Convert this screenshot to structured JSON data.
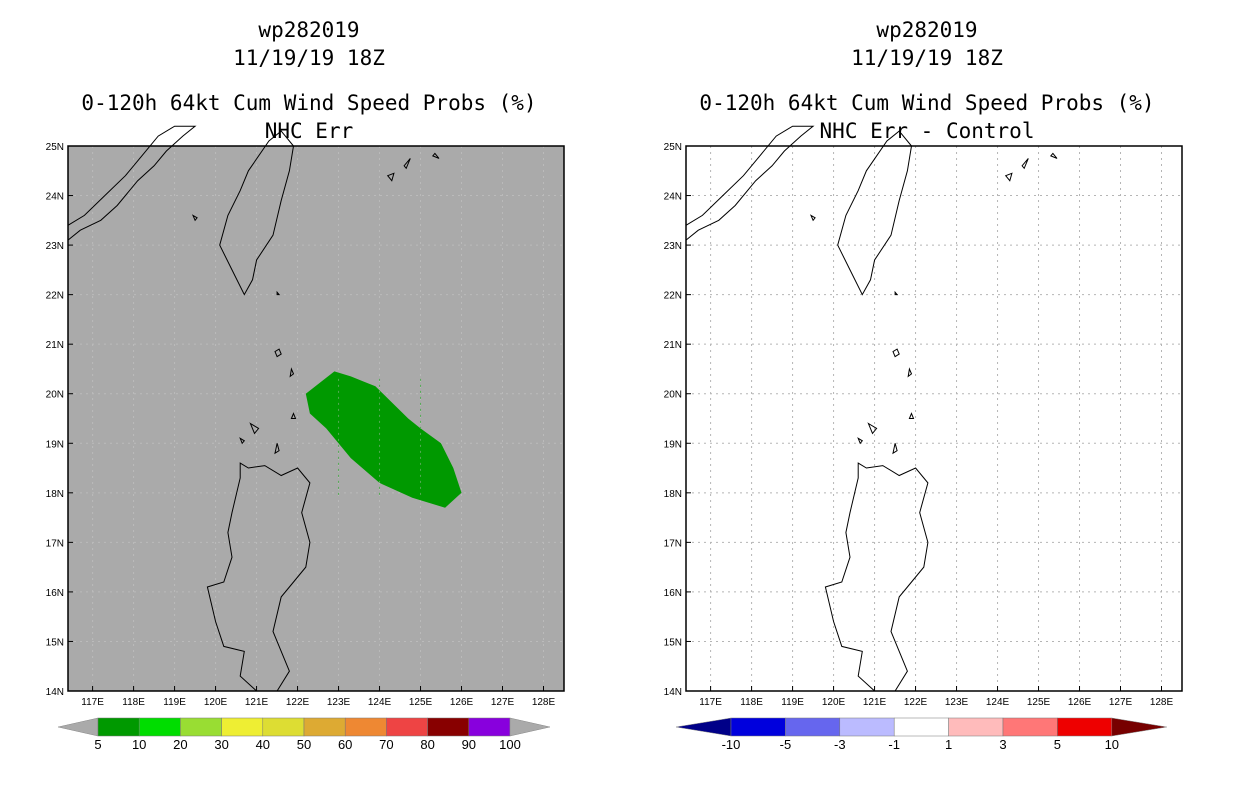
{
  "left": {
    "storm": "wp282019",
    "datetime": "11/19/19 18Z",
    "product": "0-120h 64kt Cum Wind Speed Probs (%)",
    "subtitle": "NHC Err",
    "background": "#aaaaaa",
    "colorbar": {
      "labels": [
        "5",
        "10",
        "20",
        "30",
        "40",
        "50",
        "60",
        "70",
        "80",
        "90",
        "100"
      ],
      "colors": [
        "#009900",
        "#00dd00",
        "#99dd33",
        "#eeee33",
        "#dddd33",
        "#ddaa33",
        "#ee8833",
        "#ee4444",
        "#880000",
        "#8800dd"
      ],
      "end_colors": [
        "#aaaaaa",
        "#aaaaaa"
      ]
    }
  },
  "right": {
    "storm": "wp282019",
    "datetime": "11/19/19 18Z",
    "product": "0-120h 64kt Cum Wind Speed Probs (%)",
    "subtitle": "NHC Err - Control",
    "background": "#ffffff",
    "colorbar": {
      "labels": [
        "-10",
        "-5",
        "-3",
        "-1",
        "1",
        "3",
        "5",
        "10"
      ],
      "colors": [
        "#0000dd",
        "#6666ee",
        "#bbbbff",
        "#ffffff",
        "#ffbbbb",
        "#ff7777",
        "#ee0000"
      ],
      "end_colors": [
        "#000088",
        "#770000"
      ]
    }
  },
  "axes": {
    "lat_labels": [
      "25N",
      "24N",
      "23N",
      "22N",
      "21N",
      "20N",
      "19N",
      "18N",
      "17N",
      "16N",
      "15N",
      "14N"
    ],
    "lon_labels": [
      "117E",
      "118E",
      "119E",
      "120E",
      "121E",
      "122E",
      "123E",
      "124E",
      "125E",
      "126E",
      "127E",
      "128E"
    ]
  },
  "probability_region": {
    "value_range_pct": "5-10",
    "color": "#009900",
    "label": "64kt probability 5-10%"
  }
}
